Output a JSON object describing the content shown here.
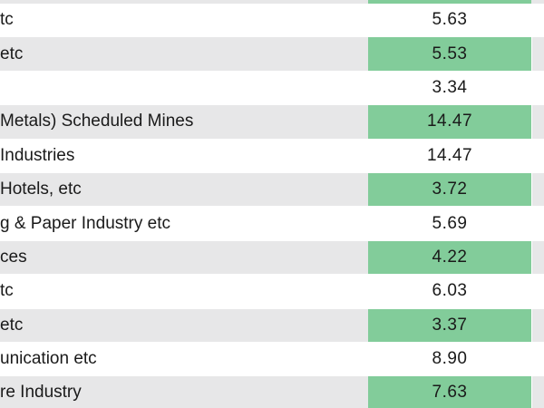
{
  "table": {
    "rows": [
      {
        "label": "tc",
        "value": "5.63",
        "shaded": false
      },
      {
        "label": "etc",
        "value": "5.53",
        "shaded": true
      },
      {
        "label": "",
        "value": "3.34",
        "shaded": false
      },
      {
        "label": "Metals) Scheduled Mines",
        "value": "14.47",
        "shaded": true
      },
      {
        "label": " Industries",
        "value": "14.47",
        "shaded": false
      },
      {
        "label": " Hotels, etc",
        "value": "3.72",
        "shaded": true
      },
      {
        "label": "g & Paper Industry etc",
        "value": "5.69",
        "shaded": false
      },
      {
        "label": "ces",
        "value": "4.22",
        "shaded": true
      },
      {
        "label": "tc",
        "value": "6.03",
        "shaded": false
      },
      {
        "label": " etc",
        "value": "3.37",
        "shaded": true
      },
      {
        "label": "unication etc",
        "value": "8.90",
        "shaded": false
      },
      {
        "label": "re Industry",
        "value": "7.63",
        "shaded": true
      }
    ]
  }
}
